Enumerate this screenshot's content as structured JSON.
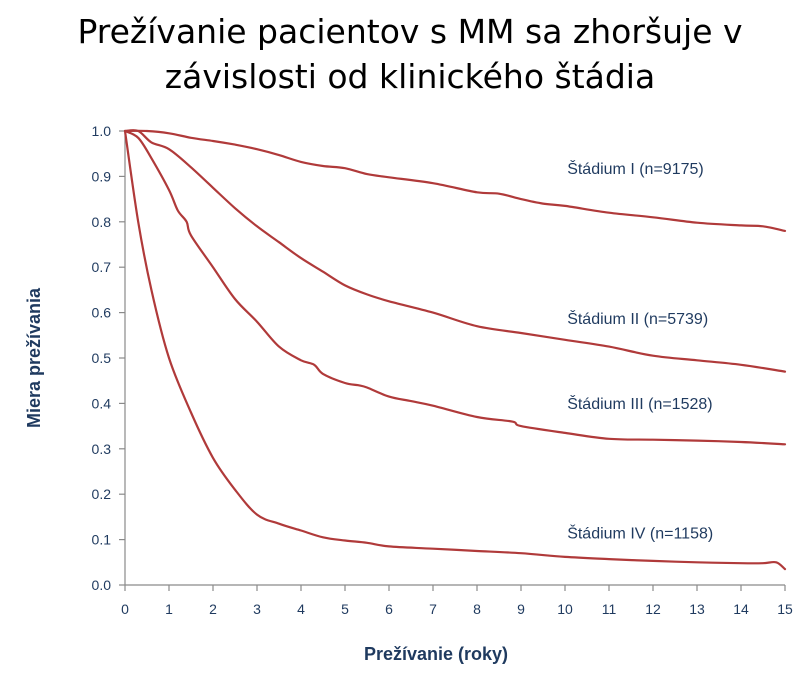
{
  "title": {
    "line1": "Prežívanie pacientov s MM sa zhoršuje v",
    "line2": "závislosti od klinického štádia"
  },
  "chart_data": {
    "type": "line",
    "title": "Prežívanie pacientov s MM sa zhoršuje v závislosti od klinického štádia",
    "xlabel": "Prežívanie (roky)",
    "ylabel": "Miera prežívania",
    "xlim": [
      0,
      15
    ],
    "ylim": [
      0,
      1.0
    ],
    "x_ticks": [
      "0",
      "1",
      "2",
      "3",
      "4",
      "5",
      "6",
      "7",
      "8",
      "9",
      "10",
      "11",
      "12",
      "13",
      "14",
      "15"
    ],
    "y_ticks": [
      "0.0",
      "0.1",
      "0.2",
      "0.3",
      "0.4",
      "0.5",
      "0.6",
      "0.7",
      "0.8",
      "0.9",
      "1.0"
    ],
    "grid": false,
    "color": "#b03a3a",
    "series": [
      {
        "name": "Štádium I (n=9175)",
        "x": [
          0,
          0.5,
          1,
          1.5,
          2,
          2.5,
          3,
          3.5,
          4,
          4.5,
          5,
          5.5,
          6,
          7,
          8,
          8.5,
          9,
          9.5,
          10,
          11,
          12,
          13,
          14,
          14.5,
          15
        ],
        "y": [
          1.0,
          1.0,
          0.995,
          0.985,
          0.978,
          0.97,
          0.96,
          0.947,
          0.932,
          0.923,
          0.918,
          0.905,
          0.898,
          0.885,
          0.865,
          0.862,
          0.85,
          0.84,
          0.835,
          0.82,
          0.81,
          0.798,
          0.792,
          0.79,
          0.78
        ]
      },
      {
        "name": "Štádium II (n=5739)",
        "x": [
          0,
          0.3,
          0.6,
          1,
          1.5,
          2,
          2.5,
          3,
          3.5,
          4,
          4.5,
          5,
          5.5,
          6,
          7,
          8,
          9,
          10,
          11,
          12,
          13,
          14,
          15
        ],
        "y": [
          1.0,
          1.0,
          0.975,
          0.96,
          0.92,
          0.875,
          0.83,
          0.79,
          0.755,
          0.72,
          0.69,
          0.66,
          0.64,
          0.625,
          0.6,
          0.57,
          0.555,
          0.54,
          0.525,
          0.505,
          0.495,
          0.485,
          0.47
        ]
      },
      {
        "name": "Štádium III (n=1528)",
        "x": [
          0,
          0.3,
          0.6,
          1,
          1.2,
          1.4,
          1.5,
          2,
          2.5,
          3,
          3.5,
          4,
          4.3,
          4.5,
          5,
          5.3,
          5.5,
          6,
          6.5,
          7,
          8,
          8.8,
          9,
          10,
          11,
          12,
          13,
          14,
          15
        ],
        "y": [
          1.0,
          0.985,
          0.94,
          0.87,
          0.825,
          0.8,
          0.77,
          0.7,
          0.63,
          0.58,
          0.525,
          0.495,
          0.485,
          0.465,
          0.445,
          0.44,
          0.435,
          0.415,
          0.405,
          0.395,
          0.37,
          0.36,
          0.35,
          0.335,
          0.322,
          0.32,
          0.318,
          0.315,
          0.31
        ]
      },
      {
        "name": "Štádium IV (n=1158)",
        "x": [
          0,
          0.3,
          0.6,
          1,
          1.5,
          2,
          2.5,
          3,
          3.5,
          4,
          4.5,
          5,
          5.5,
          6,
          7,
          8,
          9,
          10,
          11,
          12,
          13,
          14,
          14.5,
          14.8,
          15
        ],
        "y": [
          1.0,
          0.8,
          0.65,
          0.5,
          0.38,
          0.28,
          0.21,
          0.155,
          0.135,
          0.12,
          0.105,
          0.098,
          0.093,
          0.085,
          0.08,
          0.075,
          0.07,
          0.062,
          0.057,
          0.053,
          0.05,
          0.048,
          0.048,
          0.05,
          0.035
        ]
      }
    ]
  }
}
